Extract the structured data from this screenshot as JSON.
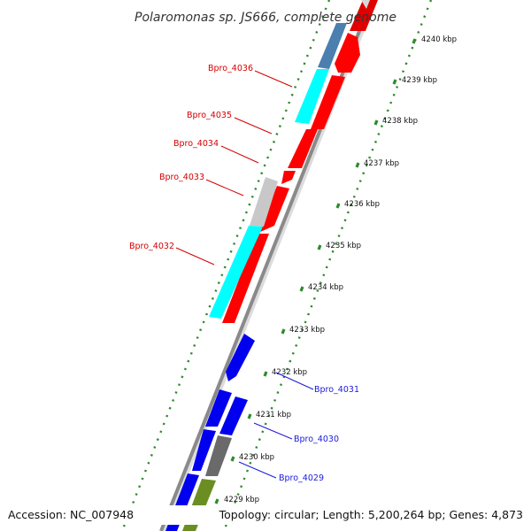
{
  "title": "Polaromonas sp. JS666, complete genome",
  "accession": "Accession: NC_007948",
  "topology": "Topology: circular; Length: 5,200,264 bp; Genes: 4,873",
  "colors": {
    "backbone": "#8a8a8a",
    "ticks": "#2e8b2e",
    "red_gene": "#ff0000",
    "blue_gene": "#0000ee",
    "cyan_gene": "#00ffff",
    "steel_gene": "#4a7fb0",
    "gray_gene": "#c8c8c8",
    "dark_gray_gene": "#6a6a6a",
    "olive_gene": "#6b8e23",
    "red_label": "#d40000",
    "blue_label": "#1a1adc"
  },
  "kbp_labels": [
    "4240 kbp",
    "4239 kbp",
    "4238 kbp",
    "4237 kbp",
    "4236 kbp",
    "4235 kbp",
    "4234 kbp",
    "4233 kbp",
    "4232 kbp",
    "4231 kbp",
    "4230 kbp",
    "4229 kbp"
  ],
  "gene_labels": {
    "g4036": "Bpro_4036",
    "g4035": "Bpro_4035",
    "g4034": "Bpro_4034",
    "g4033": "Bpro_4033",
    "g4032": "Bpro_4032",
    "g4031": "Bpro_4031",
    "g4030": "Bpro_4030",
    "g4029": "Bpro_4029"
  }
}
